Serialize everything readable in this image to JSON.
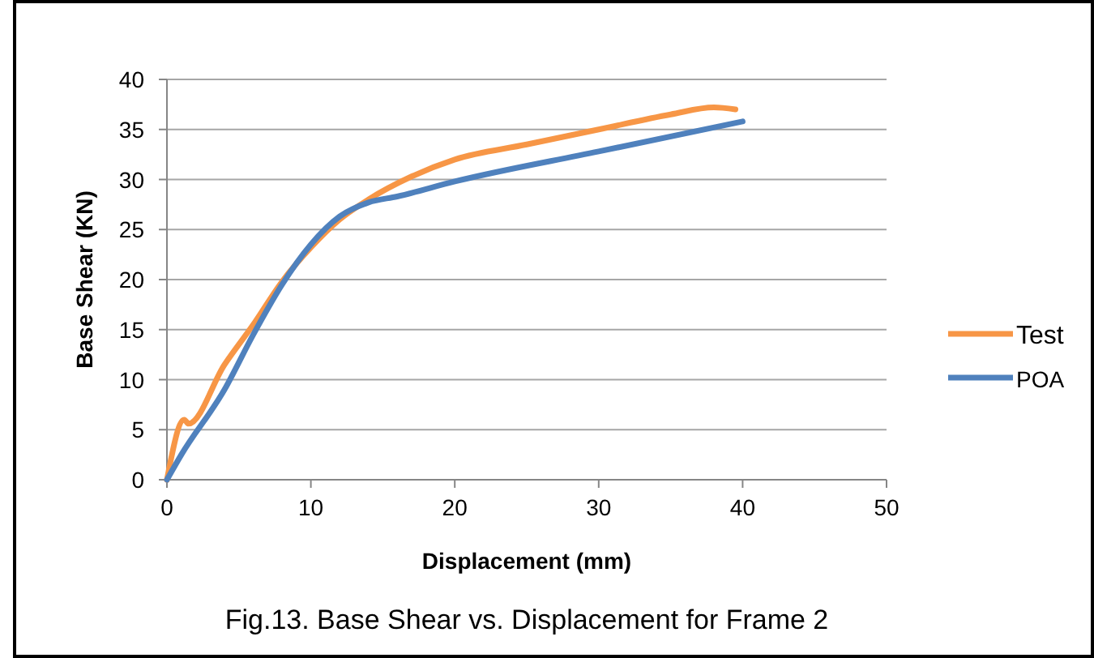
{
  "chart_data": {
    "type": "line",
    "xlabel": "Displacement (mm)",
    "ylabel": "Base Shear (KN)",
    "annotations": [
      "Fig.13. Base Shear vs. Displacement for Frame 2"
    ],
    "xlim": [
      0,
      50
    ],
    "xticks": [
      0,
      10,
      20,
      30,
      40,
      50
    ],
    "ylim": [
      0,
      40
    ],
    "yticks": [
      0,
      5,
      10,
      15,
      20,
      25,
      30,
      35,
      40
    ],
    "grid": "y",
    "legend": "right",
    "marker": "none",
    "series": [
      {
        "name": "Test",
        "color": "#f79646",
        "x": [
          0,
          1.2,
          1.5,
          4,
          6,
          8,
          10,
          12,
          14,
          17,
          20,
          25,
          30,
          35,
          38,
          39.5
        ],
        "values": [
          0,
          6,
          5.6,
          11.5,
          15.5,
          19.8,
          23.2,
          26,
          28,
          30.3,
          32,
          33.5,
          35,
          36.5,
          37.2,
          37
        ]
      },
      {
        "name": "POA",
        "color": "#4f81bd",
        "x": [
          0,
          1,
          4,
          6,
          8,
          10,
          12,
          14,
          16,
          20,
          30,
          40
        ],
        "values": [
          0,
          2.5,
          9,
          14.5,
          19.5,
          23.5,
          26.3,
          27.7,
          28.3,
          29.8,
          32.8,
          35.8
        ]
      }
    ]
  }
}
